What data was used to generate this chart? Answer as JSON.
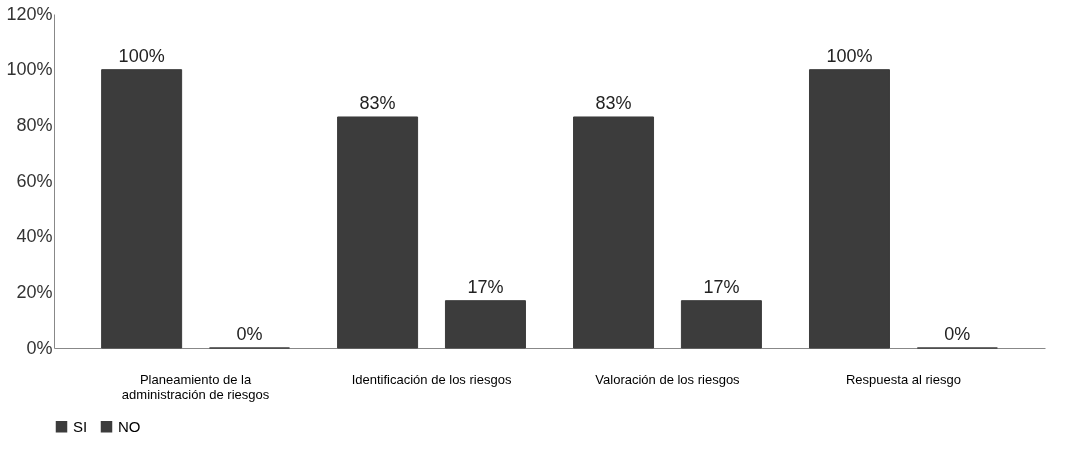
{
  "chart_data": {
    "type": "bar",
    "categories": [
      "Planeamiento de la administración de riesgos",
      "Identificación de los riesgos",
      "Valoración de los riesgos",
      "Respuesta al riesgo"
    ],
    "series": [
      {
        "name": "SI",
        "color": "#3c3c3c",
        "values": [
          100,
          83,
          83,
          100
        ],
        "value_labels": [
          "100%",
          "83%",
          "83%",
          "100%"
        ]
      },
      {
        "name": "NO",
        "color": "#3c3c3c",
        "values": [
          0,
          17,
          17,
          0
        ],
        "value_labels": [
          "0%",
          "17%",
          "17%",
          "0%"
        ]
      }
    ],
    "ylim": [
      0,
      120
    ],
    "yticks": [
      {
        "value": 0,
        "label": "0%"
      },
      {
        "value": 20,
        "label": "20%"
      },
      {
        "value": 40,
        "label": "40%"
      },
      {
        "value": 60,
        "label": "60%"
      },
      {
        "value": 80,
        "label": "80%"
      },
      {
        "value": 100,
        "label": "100%"
      },
      {
        "value": 120,
        "label": "120%"
      }
    ],
    "grid": false,
    "legend": "bottom"
  }
}
